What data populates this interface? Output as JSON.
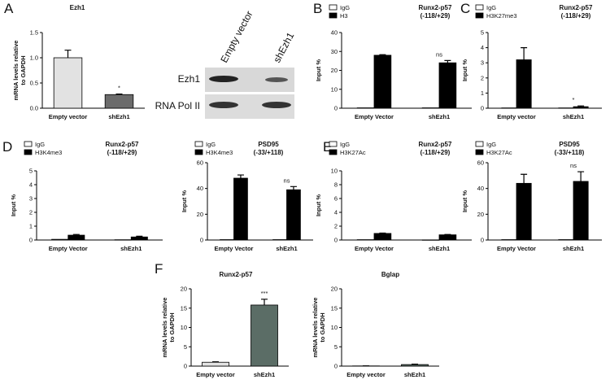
{
  "chart_data": [
    {
      "type": "bar",
      "panel": "A",
      "title": "Ezh1",
      "ylabel": "mRNA levels relative to GAPDH",
      "categories": [
        "Empty vector",
        "shEzh1"
      ],
      "values": [
        1.0,
        0.27
      ],
      "errors": [
        0.15,
        0.01
      ],
      "colors": [
        "#e2e2e2",
        "#6b6b6b"
      ],
      "ylim": [
        0,
        1.5
      ],
      "yticks": [
        {
          "value": 0,
          "label": "0.0"
        },
        {
          "value": 0.5,
          "label": "0.5"
        },
        {
          "value": 1.0,
          "label": "1.0"
        },
        {
          "value": 1.5,
          "label": "1.5"
        }
      ],
      "annotation": "*"
    },
    {
      "type": "grouped-bar",
      "panel": "B",
      "title": "Runx2-p57",
      "subtitle": "(-118/+29)",
      "ylabel": "Input %",
      "categories": [
        "Empty Vector",
        "shEzh1"
      ],
      "series": [
        {
          "name": "IgG",
          "color": "#ffffff",
          "values": [
            0.2,
            0.2
          ]
        },
        {
          "name": "H3",
          "color": "#000000",
          "values": [
            28,
            24
          ],
          "errors": [
            0.3,
            1.2
          ]
        }
      ],
      "ylim": [
        0,
        40
      ],
      "yticks": [
        0,
        10,
        20,
        30,
        40
      ],
      "annotation": "ns"
    },
    {
      "type": "grouped-bar",
      "panel": "C",
      "title": "Runx2-p57",
      "subtitle": "(-118/+29)",
      "ylabel": "Input %",
      "categories": [
        "Empty vector",
        "shEzh1"
      ],
      "series": [
        {
          "name": "IgG",
          "color": "#ffffff",
          "values": [
            0.02,
            0.02
          ]
        },
        {
          "name": "H3K27me3",
          "color": "#000000",
          "values": [
            3.2,
            0.1
          ],
          "errors": [
            0.8,
            0.05
          ]
        }
      ],
      "ylim": [
        0,
        5
      ],
      "yticks": [
        0,
        1,
        2,
        3,
        4,
        5
      ],
      "annotation": "*"
    },
    {
      "type": "grouped-bar",
      "panel": "D",
      "title": "Runx2-p57",
      "subtitle": "(-118/+29)",
      "ylabel": "Input %",
      "categories": [
        "Empty Vector",
        "shEzh1"
      ],
      "series": [
        {
          "name": "IgG",
          "color": "#ffffff",
          "values": [
            0.05,
            0.02
          ]
        },
        {
          "name": "H3K4me3",
          "color": "#000000",
          "values": [
            0.35,
            0.22
          ],
          "errors": [
            0.05,
            0.05
          ]
        }
      ],
      "ylim": [
        0,
        5
      ],
      "yticks": [
        0,
        1,
        2,
        3,
        4,
        5
      ]
    },
    {
      "type": "grouped-bar",
      "title": "PSD95",
      "subtitle": "(-33/+118)",
      "ylabel": "Input %",
      "categories": [
        "Empty Vector",
        "shEzh1"
      ],
      "series": [
        {
          "name": "IgG",
          "color": "#ffffff",
          "values": [
            0.3,
            0.3
          ]
        },
        {
          "name": "H3K4me3",
          "color": "#000000",
          "values": [
            48,
            39
          ],
          "errors": [
            2.5,
            2.5
          ]
        }
      ],
      "ylim": [
        0,
        60
      ],
      "yticks": [
        0,
        20,
        40,
        60
      ],
      "annotation": "ns"
    },
    {
      "type": "grouped-bar",
      "panel": "E",
      "title": "Runx2-p57",
      "subtitle": "(-118/+29)",
      "ylabel": "Input %",
      "categories": [
        "Empty Vector",
        "shEzh1"
      ],
      "series": [
        {
          "name": "IgG",
          "color": "#ffffff",
          "values": [
            0.05,
            0.02
          ]
        },
        {
          "name": "H3K27Ac",
          "color": "#000000",
          "values": [
            0.95,
            0.75
          ],
          "errors": [
            0.05,
            0.05
          ]
        }
      ],
      "ylim": [
        0,
        10
      ],
      "yticks": [
        0,
        2,
        4,
        6,
        8,
        10
      ]
    },
    {
      "type": "grouped-bar",
      "title": "PSD95",
      "subtitle": "(-33/+118)",
      "ylabel": "Input %",
      "categories": [
        "Empty Vector",
        "shEzh1"
      ],
      "series": [
        {
          "name": "IgG",
          "color": "#ffffff",
          "values": [
            0.3,
            0.3
          ]
        },
        {
          "name": "H3K27Ac",
          "color": "#000000",
          "values": [
            44,
            45.5
          ],
          "errors": [
            7,
            7.5
          ]
        }
      ],
      "ylim": [
        0,
        60
      ],
      "yticks": [
        0,
        20,
        40,
        60
      ],
      "annotation": "ns"
    },
    {
      "type": "bar",
      "panel": "F",
      "title": "Runx2-p57",
      "ylabel": "mRNA levels relative to GAPDH",
      "categories": [
        "Empty vector",
        "shEzh1"
      ],
      "values": [
        1,
        15.8
      ],
      "errors": [
        0.1,
        1.5
      ],
      "colors": [
        "#e2e2e2",
        "#5b6d66"
      ],
      "ylim": [
        0,
        20
      ],
      "yticks": [
        0,
        5,
        10,
        15,
        20
      ],
      "annotation": "***"
    },
    {
      "type": "bar",
      "title": "Bglap",
      "ylabel": "mRNA levels relative to GAPDH",
      "categories": [
        "Empty vector",
        "shEzh1"
      ],
      "values": [
        0.05,
        0.4
      ],
      "errors": [
        0.02,
        0.1
      ],
      "colors": [
        "#e2e2e2",
        "#5b6d66"
      ],
      "ylim": [
        0,
        20
      ],
      "yticks": [
        0,
        5,
        10,
        15,
        20
      ]
    }
  ],
  "blot": {
    "lanes": [
      "Empty vector",
      "shEzh1"
    ],
    "rows": [
      "Ezh1",
      "RNA Pol II"
    ]
  }
}
